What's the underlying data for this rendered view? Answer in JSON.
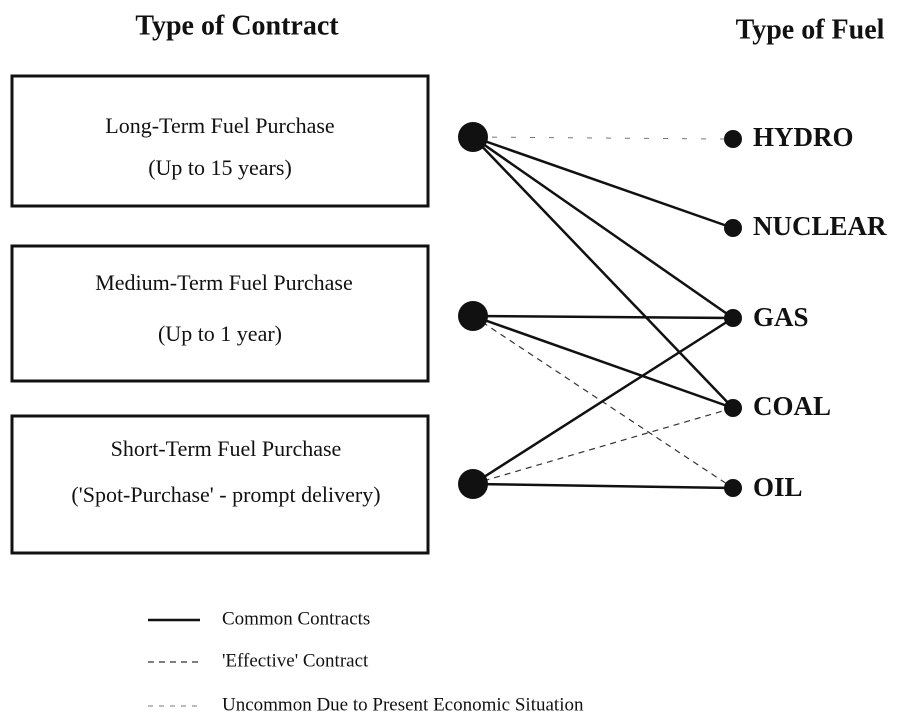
{
  "headers": {
    "contract": "Type of Contract",
    "fuel": "Type of Fuel"
  },
  "contracts": [
    {
      "name": "Long-Term Fuel Purchase",
      "detail": "(Up to 15 years)"
    },
    {
      "name": "Medium-Term Fuel Purchase",
      "detail": "(Up to 1 year)"
    },
    {
      "name": "Short-Term Fuel Purchase",
      "detail": "('Spot-Purchase' - prompt delivery)"
    }
  ],
  "fuels": [
    "HYDRO",
    "NUCLEAR",
    "GAS",
    "COAL",
    "OIL"
  ],
  "legend": [
    "Common Contracts",
    "'Effective' Contract",
    "Uncommon Due to Present Economic Situation"
  ]
}
